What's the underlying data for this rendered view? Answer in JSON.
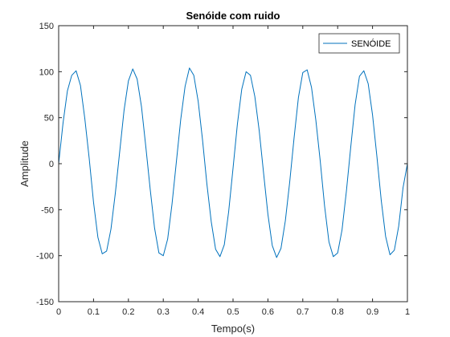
{
  "chart_data": {
    "type": "line",
    "title": "Senóide com ruido",
    "xlabel": "Tempo(s)",
    "ylabel": "Amplitude",
    "xlim": [
      0,
      1
    ],
    "ylim": [
      -150,
      150
    ],
    "xticks": [
      0,
      0.1,
      0.2,
      0.3,
      0.4,
      0.5,
      0.6,
      0.7,
      0.8,
      0.9,
      1
    ],
    "xtick_labels": [
      "0",
      "0.1",
      "0.2",
      "0.3",
      "0.4",
      "0.5",
      "0.6",
      "0.7",
      "0.8",
      "0.9",
      "1"
    ],
    "yticks": [
      -150,
      -100,
      -50,
      0,
      50,
      100,
      150
    ],
    "ytick_labels": [
      "-150",
      "-100",
      "-50",
      "0",
      "50",
      "100",
      "150"
    ],
    "grid": false,
    "legend_position": "top-right",
    "series": [
      {
        "name": "SENÓIDE",
        "color": "#0072bd",
        "x": [
          0,
          0.0125,
          0.025,
          0.0375,
          0.05,
          0.0625,
          0.075,
          0.0875,
          0.1,
          0.1125,
          0.125,
          0.1375,
          0.15,
          0.1625,
          0.175,
          0.1875,
          0.2,
          0.2125,
          0.225,
          0.2375,
          0.25,
          0.2625,
          0.275,
          0.2875,
          0.3,
          0.3125,
          0.325,
          0.3375,
          0.35,
          0.3625,
          0.375,
          0.3875,
          0.4,
          0.4125,
          0.425,
          0.4375,
          0.45,
          0.4625,
          0.475,
          0.4875,
          0.5,
          0.5125,
          0.525,
          0.5375,
          0.55,
          0.5625,
          0.575,
          0.5875,
          0.6,
          0.6125,
          0.625,
          0.6375,
          0.65,
          0.6625,
          0.675,
          0.6875,
          0.7,
          0.7125,
          0.725,
          0.7375,
          0.75,
          0.7625,
          0.775,
          0.7875,
          0.8,
          0.8125,
          0.825,
          0.8375,
          0.85,
          0.8625,
          0.875,
          0.8875,
          0.9,
          0.9125,
          0.925,
          0.9375,
          0.95,
          0.9625,
          0.975,
          0.9875,
          1
        ],
        "y": [
          0,
          44,
          79,
          96,
          101,
          85,
          49,
          6,
          -42,
          -80,
          -98,
          -95,
          -71,
          -32,
          13,
          58,
          90,
          103,
          92,
          62,
          18,
          -28,
          -70,
          -97,
          -100,
          -82,
          -44,
          2,
          48,
          84,
          104,
          96,
          68,
          26,
          -22,
          -63,
          -93,
          -101,
          -88,
          -52,
          -5,
          43,
          81,
          100,
          96,
          73,
          36,
          -10,
          -55,
          -89,
          -102,
          -92,
          -62,
          -20,
          28,
          72,
          99,
          102,
          83,
          47,
          3,
          -46,
          -85,
          -101,
          -97,
          -72,
          -30,
          18,
          64,
          95,
          101,
          87,
          53,
          8,
          -40,
          -79,
          -99,
          -94,
          -68,
          -26,
          0
        ]
      }
    ]
  }
}
